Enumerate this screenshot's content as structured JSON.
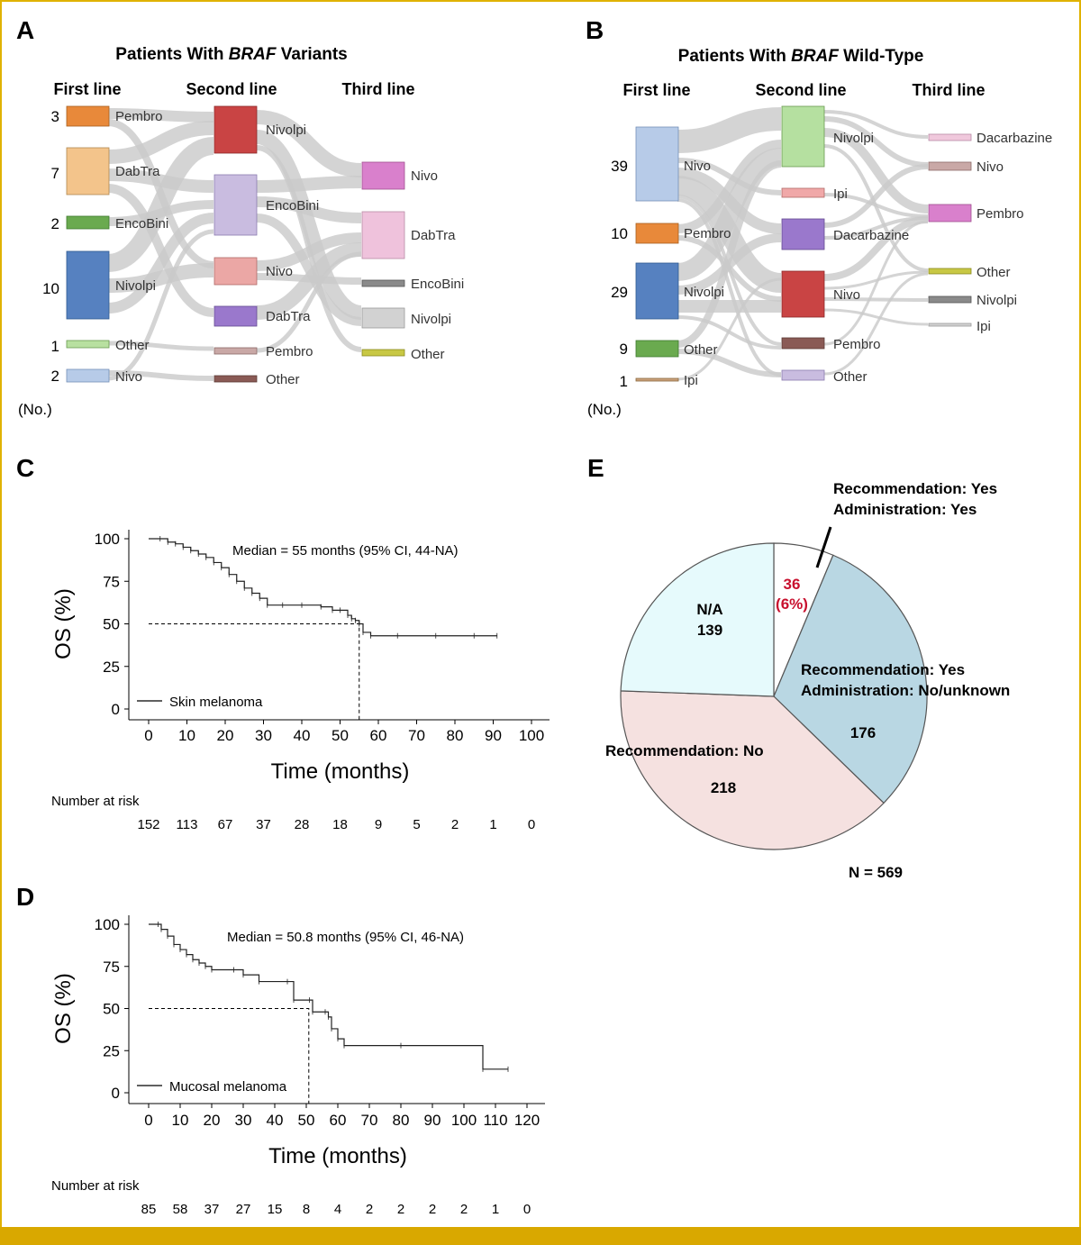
{
  "panels": {
    "A": {
      "letter": "A",
      "title_prefix": "Patients With ",
      "title_em": "BRAF",
      "title_suffix": " Variants",
      "columns": [
        "First line",
        "Second line",
        "Third line"
      ],
      "unit": "(No.)",
      "first_line": [
        {
          "label": "Pembro",
          "count": "3",
          "color": "#e8893a"
        },
        {
          "label": "DabTra",
          "count": "7",
          "color": "#f3c48b"
        },
        {
          "label": "EncoBini",
          "count": "2",
          "color": "#6aaa4f"
        },
        {
          "label": "Nivolpi",
          "count": "10",
          "color": "#5681c0"
        },
        {
          "label": "Other",
          "count": "1",
          "color": "#b8e0a0"
        },
        {
          "label": "Nivo",
          "count": "2",
          "color": "#b7cbe8"
        }
      ],
      "second_line": [
        {
          "label": "Nivolpi",
          "color": "#c94444"
        },
        {
          "label": "EncoBini",
          "color": "#c9bce0"
        },
        {
          "label": "Nivo",
          "color": "#eba7a5"
        },
        {
          "label": "DabTra",
          "color": "#9a78cc"
        },
        {
          "label": "Pembro",
          "color": "#c9a8a6"
        },
        {
          "label": "Other",
          "color": "#8a5a55"
        }
      ],
      "third_line": [
        {
          "label": "Nivo",
          "color": "#d980cc"
        },
        {
          "label": "DabTra",
          "color": "#efc2dc"
        },
        {
          "label": "EncoBini",
          "color": "#8a8a8a"
        },
        {
          "label": "Nivolpi",
          "color": "#d2d2d2"
        },
        {
          "label": "Other",
          "color": "#c8c844"
        }
      ]
    },
    "B": {
      "letter": "B",
      "title_prefix": "Patients With ",
      "title_em": "BRAF",
      "title_suffix": " Wild-Type",
      "columns": [
        "First line",
        "Second line",
        "Third line"
      ],
      "unit": "(No.)",
      "first_line": [
        {
          "label": "Nivo",
          "count": "39",
          "color": "#b7cbe8"
        },
        {
          "label": "Pembro",
          "count": "10",
          "color": "#e8893a"
        },
        {
          "label": "Nivolpi",
          "count": "29",
          "color": "#5681c0"
        },
        {
          "label": "Other",
          "count": "9",
          "color": "#6aaa4f"
        },
        {
          "label": "Ipi",
          "count": "1",
          "color": "#c9a07a"
        }
      ],
      "second_line": [
        {
          "label": "Nivolpi",
          "color": "#b5e0a0"
        },
        {
          "label": "Ipi",
          "color": "#f0a8a8"
        },
        {
          "label": "Dacarbazine",
          "color": "#9a78cc"
        },
        {
          "label": "Nivo",
          "color": "#c94444"
        },
        {
          "label": "Pembro",
          "color": "#8a5a55"
        },
        {
          "label": "Other",
          "color": "#c9bce0"
        }
      ],
      "third_line": [
        {
          "label": "Dacarbazine",
          "color": "#f0c8dc"
        },
        {
          "label": "Nivo",
          "color": "#c9a8a6"
        },
        {
          "label": "Pembro",
          "color": "#d980cc"
        },
        {
          "label": "Other",
          "color": "#c8c844"
        },
        {
          "label": "Nivolpi",
          "color": "#8a8a8a"
        },
        {
          "label": "Ipi",
          "color": "#d2d2d2"
        }
      ]
    },
    "C": {
      "letter": "C",
      "annotation": "Median = 55 months (95% CI, 44-NA)",
      "legend": "Skin melanoma",
      "risk_label": "Number at risk",
      "risk": [
        "152",
        "113",
        "67",
        "37",
        "28",
        "18",
        "9",
        "5",
        "2",
        "1",
        "0"
      ]
    },
    "D": {
      "letter": "D",
      "annotation": "Median = 50.8 months (95% CI, 46-NA)",
      "legend": "Mucosal melanoma",
      "risk_label": "Number at risk",
      "risk": [
        "85",
        "58",
        "37",
        "27",
        "15",
        "8",
        "4",
        "2",
        "2",
        "2",
        "2",
        "1",
        "0"
      ]
    },
    "E": {
      "letter": "E",
      "total": "N = 569",
      "slices": [
        {
          "label_lines": [
            "Recommendation: Yes",
            "Administration: Yes"
          ],
          "value": 36,
          "value_text": "36",
          "pct_text": "(6%)",
          "color": "#ffffff"
        },
        {
          "label_lines": [
            "Recommendation: Yes",
            "Administration: No/unknown"
          ],
          "value": 176,
          "value_text": "176",
          "color": "#b9d7e3"
        },
        {
          "label_lines": [
            "Recommendation: No"
          ],
          "value": 218,
          "value_text": "218",
          "color": "#f5e1e0"
        },
        {
          "label_lines": [
            "N/A"
          ],
          "value": 139,
          "value_text": "139",
          "color": "#e6fafc"
        }
      ]
    }
  },
  "chart_data": [
    {
      "type": "sankey",
      "title": "Patients With BRAF Variants",
      "stages": [
        "First line",
        "Second line",
        "Third line"
      ],
      "first_line_counts": {
        "Pembro": 3,
        "DabTra": 7,
        "EncoBini": 2,
        "Nivolpi": 10,
        "Other": 1,
        "Nivo": 2
      }
    },
    {
      "type": "sankey",
      "title": "Patients With BRAF Wild-Type",
      "stages": [
        "First line",
        "Second line",
        "Third line"
      ],
      "first_line_counts": {
        "Nivo": 39,
        "Pembro": 10,
        "Nivolpi": 29,
        "Other": 9,
        "Ipi": 1
      }
    },
    {
      "type": "line",
      "subtype": "kaplan-meier",
      "xlabel": "Time (months)",
      "ylabel": "OS (%)",
      "xlim": [
        0,
        100
      ],
      "ylim": [
        0,
        100
      ],
      "xticks": [
        0,
        10,
        20,
        30,
        40,
        50,
        60,
        70,
        80,
        90,
        100
      ],
      "yticks": [
        0,
        25,
        50,
        75,
        100
      ],
      "median": 55,
      "series": [
        {
          "name": "Skin melanoma",
          "x": [
            0,
            3,
            5,
            7,
            9,
            11,
            13,
            15,
            17,
            19,
            21,
            23,
            25,
            27,
            29,
            31,
            35,
            40,
            45,
            48,
            50,
            52,
            53,
            54,
            55,
            56,
            58,
            65,
            75,
            85,
            91
          ],
          "y": [
            100,
            100,
            98,
            97,
            95,
            93,
            91,
            89,
            86,
            83,
            79,
            75,
            71,
            68,
            65,
            61,
            61,
            61,
            60,
            58,
            58,
            55,
            53,
            52,
            50,
            45,
            43,
            43,
            43,
            43,
            43
          ]
        }
      ]
    },
    {
      "type": "line",
      "subtype": "kaplan-meier",
      "xlabel": "Time (months)",
      "ylabel": "OS (%)",
      "xlim": [
        0,
        120
      ],
      "ylim": [
        0,
        100
      ],
      "xticks": [
        0,
        10,
        20,
        30,
        40,
        50,
        60,
        70,
        80,
        90,
        100,
        110,
        120
      ],
      "yticks": [
        0,
        25,
        50,
        75,
        100
      ],
      "median": 50.8,
      "series": [
        {
          "name": "Mucosal melanoma",
          "x": [
            0,
            3,
            4,
            6,
            8,
            10,
            12,
            14,
            16,
            18,
            20,
            27,
            30,
            35,
            44,
            46,
            51,
            52,
            56,
            57,
            58,
            60,
            62,
            80,
            106,
            114
          ],
          "y": [
            100,
            100,
            97,
            93,
            88,
            85,
            82,
            79,
            77,
            75,
            73,
            73,
            70,
            66,
            66,
            55,
            55,
            48,
            48,
            45,
            38,
            32,
            28,
            28,
            14,
            14
          ]
        }
      ]
    },
    {
      "type": "pie",
      "total": 569,
      "slices": [
        {
          "label": "Recommendation: Yes / Administration: Yes",
          "value": 36
        },
        {
          "label": "Recommendation: Yes / Administration: No/unknown",
          "value": 176
        },
        {
          "label": "Recommendation: No",
          "value": 218
        },
        {
          "label": "N/A",
          "value": 139
        }
      ]
    }
  ]
}
